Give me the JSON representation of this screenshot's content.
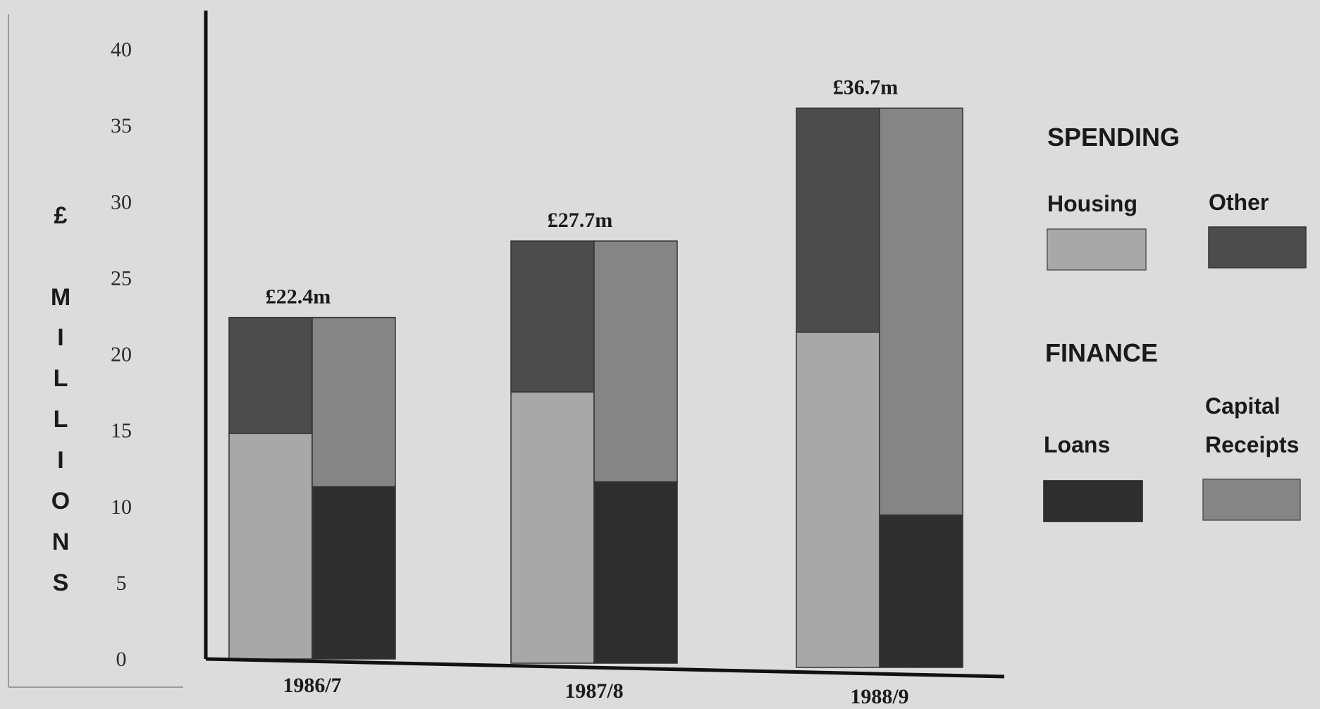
{
  "chart_data": {
    "type": "bar",
    "title": "",
    "xlabel": "",
    "ylabel": "£ MILLIONS",
    "ylabel_chars": [
      "£",
      "M",
      "I",
      "L",
      "L",
      "I",
      "O",
      "N",
      "S"
    ],
    "ylim": [
      0,
      40
    ],
    "yticks": [
      0,
      5,
      10,
      15,
      20,
      25,
      30,
      35,
      40
    ],
    "grid": false,
    "legend_position": "right",
    "categories": [
      "1986/7",
      "1987/8",
      "1988/9"
    ],
    "totals": [
      "£22.4m",
      "£27.7m",
      "£36.7m"
    ],
    "groups": [
      {
        "name": "SPENDING",
        "series": [
          {
            "name": "Housing",
            "color": "#a8a8a8",
            "values": [
              14.8,
              17.8,
              22.0
            ]
          },
          {
            "name": "Other",
            "color": "#4c4c4c",
            "values": [
              7.6,
              9.9,
              14.7
            ]
          }
        ]
      },
      {
        "name": "FINANCE",
        "series": [
          {
            "name": "Loans",
            "color": "#2e2e2e",
            "values": [
              11.3,
              11.9,
              10.0
            ]
          },
          {
            "name": "Capital Receipts",
            "label_lines": [
              "Capital",
              "Receipts"
            ],
            "color": "#858585",
            "values": [
              11.1,
              15.8,
              26.7
            ]
          }
        ]
      }
    ]
  }
}
